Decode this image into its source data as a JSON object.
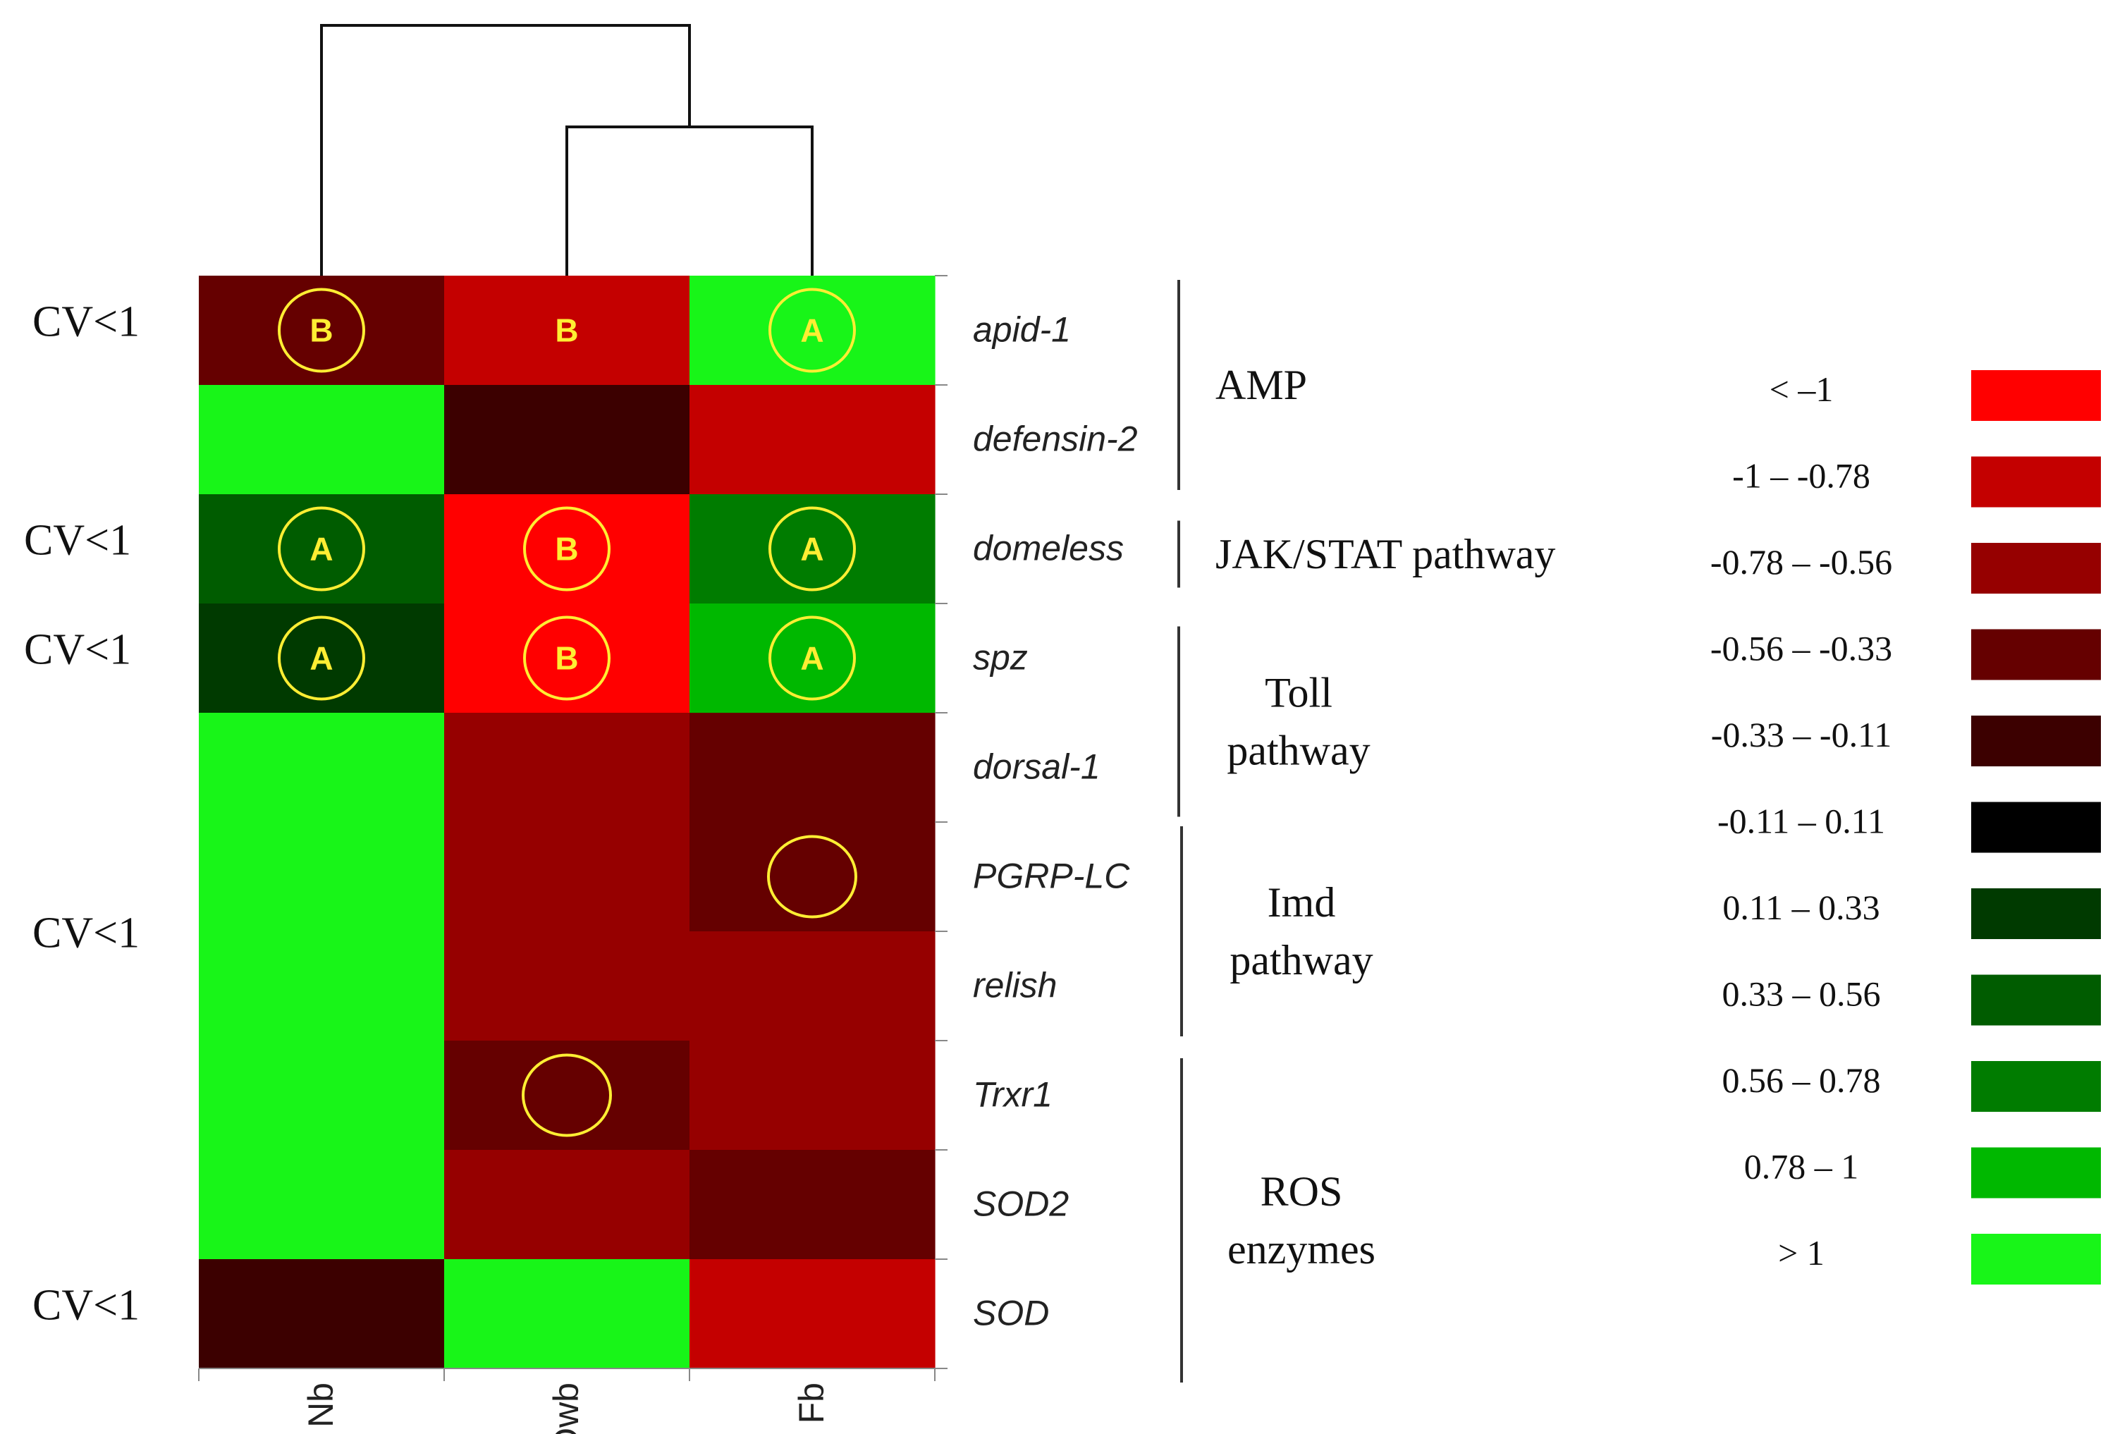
{
  "chart_data": {
    "type": "heatmap",
    "columns": [
      "Nb",
      "Owb",
      "Fb"
    ],
    "rows": [
      "apid-1",
      "defensin-2",
      "domeless",
      "spz",
      "dorsal-1",
      "PGRP-LC",
      "relish",
      "Trxr1",
      "SOD2",
      "SOD"
    ],
    "cell_colors": [
      [
        "#650000",
        "#c40000",
        "#18f518"
      ],
      [
        "#18f518",
        "#3c0000",
        "#c40000"
      ],
      [
        "#005c00",
        "#ff0000",
        "#007c00"
      ],
      [
        "#003a00",
        "#ff0000",
        "#00b800"
      ],
      [
        "#18f518",
        "#960000",
        "#650000"
      ],
      [
        "#18f518",
        "#960000",
        "#650000"
      ],
      [
        "#18f518",
        "#960000",
        "#960000"
      ],
      [
        "#18f518",
        "#650000",
        "#960000"
      ],
      [
        "#18f518",
        "#960000",
        "#650000"
      ],
      [
        "#3c0000",
        "#18f518",
        "#c40000"
      ]
    ],
    "significance": [
      {
        "row": 0,
        "col": 0,
        "letter": "B",
        "circle": true
      },
      {
        "row": 0,
        "col": 1,
        "letter": "B",
        "circle": false
      },
      {
        "row": 0,
        "col": 2,
        "letter": "A",
        "circle": true
      },
      {
        "row": 2,
        "col": 0,
        "letter": "A",
        "circle": true
      },
      {
        "row": 2,
        "col": 1,
        "letter": "B",
        "circle": true
      },
      {
        "row": 2,
        "col": 2,
        "letter": "A",
        "circle": true
      },
      {
        "row": 3,
        "col": 0,
        "letter": "A",
        "circle": true
      },
      {
        "row": 3,
        "col": 1,
        "letter": "B",
        "circle": true
      },
      {
        "row": 3,
        "col": 2,
        "letter": "A",
        "circle": true
      },
      {
        "row": 5,
        "col": 2,
        "letter": "",
        "circle": true
      },
      {
        "row": 7,
        "col": 1,
        "letter": "",
        "circle": true
      }
    ],
    "cv_labels": [
      {
        "text": "CV<1",
        "row": 0
      },
      {
        "text": "CV<1",
        "row": 2
      },
      {
        "text": "CV<1",
        "row": 3
      },
      {
        "text": "CV<1",
        "row": 6
      },
      {
        "text": "CV<1",
        "row": 9
      }
    ],
    "gene_groups": [
      {
        "lines": [
          "AMP"
        ],
        "from_row": 0,
        "to_row": 1
      },
      {
        "lines": [
          "JAK/STAT pathway"
        ],
        "from_row": 2,
        "to_row": 2
      },
      {
        "lines": [
          "Toll",
          "pathway"
        ],
        "from_row": 3,
        "to_row": 4
      },
      {
        "lines": [
          "Imd",
          "pathway"
        ],
        "from_row": 5,
        "to_row": 6
      },
      {
        "lines": [
          "ROS",
          "enzymes"
        ],
        "from_row": 7,
        "to_row": 9
      }
    ],
    "dendrogram": {
      "merges": [
        {
          "left": "Owb",
          "right": "Fb",
          "level": 1
        },
        {
          "left": "Nb",
          "right": "Owb+Fb",
          "level": 2
        }
      ]
    },
    "legend": [
      {
        "label": "< –1",
        "color": "#ff0000"
      },
      {
        "label": "-1 – -0.78",
        "color": "#c40000"
      },
      {
        "label": "-0.78 – -0.56",
        "color": "#960000"
      },
      {
        "label": "-0.56 – -0.33",
        "color": "#650000"
      },
      {
        "label": "-0.33 – -0.11",
        "color": "#3c0000"
      },
      {
        "label": "-0.11 – 0.11",
        "color": "#000000"
      },
      {
        "label": "0.11 –  0.33",
        "color": "#003a00"
      },
      {
        "label": "0.33 –  0.56",
        "color": "#005c00"
      },
      {
        "label": "0.56 –  0.78",
        "color": "#007c00"
      },
      {
        "label": "0.78 –  1",
        "color": "#00b800"
      },
      {
        "label": "> 1",
        "color": "#18f518"
      }
    ]
  }
}
